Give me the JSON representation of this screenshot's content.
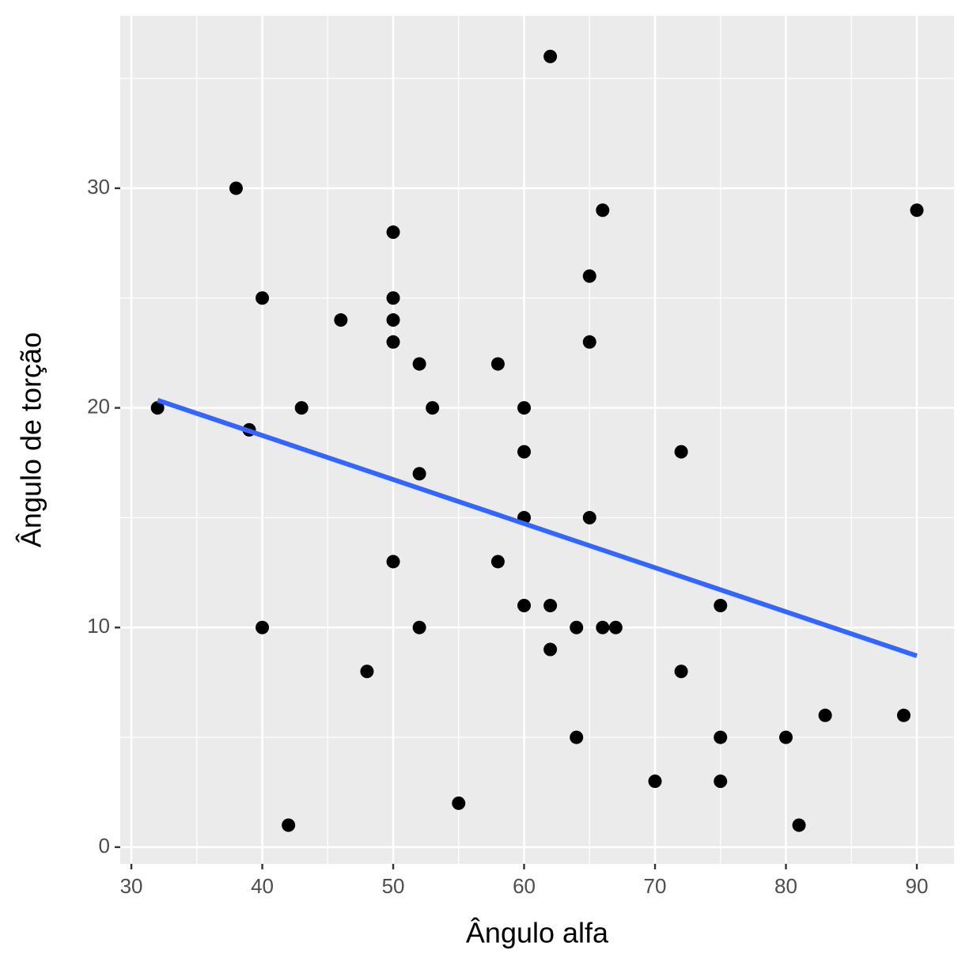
{
  "chart_data": {
    "type": "scatter",
    "x_label": "Ângulo alfa",
    "y_label": "Ângulo de torção",
    "x": [
      32,
      38,
      39,
      40,
      40,
      42,
      43,
      46,
      48,
      50,
      50,
      50,
      50,
      50,
      52,
      52,
      52,
      53,
      55,
      58,
      58,
      60,
      60,
      60,
      60,
      62,
      62,
      62,
      64,
      64,
      65,
      65,
      65,
      66,
      66,
      67,
      70,
      72,
      72,
      75,
      75,
      75,
      80,
      81,
      83,
      89,
      90
    ],
    "values": [
      20,
      30,
      19,
      25,
      10,
      1,
      20,
      24,
      8,
      28,
      25,
      24,
      23,
      13,
      22,
      17,
      10,
      20,
      2,
      22,
      13,
      20,
      18,
      15,
      11,
      36,
      11,
      9,
      10,
      5,
      26,
      23,
      15,
      29,
      10,
      10,
      3,
      18,
      8,
      11,
      5,
      3,
      5,
      1,
      6,
      6,
      29
    ],
    "color": "#000000",
    "trend": {
      "x": [
        32,
        90
      ],
      "values": [
        20.35,
        8.71
      ],
      "color": "#3366FF"
    },
    "xlim": [
      29.15,
      92.84
    ],
    "ylim": [
      -0.76,
      37.85
    ],
    "xticks": [
      30,
      40,
      50,
      60,
      70,
      80,
      90
    ],
    "yticks": [
      0,
      10,
      20,
      30
    ],
    "x_minor_grid": [
      35,
      45,
      55,
      65,
      75,
      85
    ],
    "y_minor_grid": [
      5,
      15,
      25,
      35
    ],
    "grid": true
  }
}
